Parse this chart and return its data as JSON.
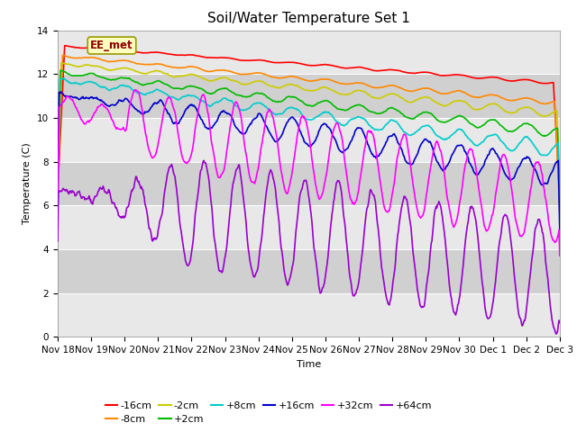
{
  "title": "Soil/Water Temperature Set 1",
  "xlabel": "Time",
  "ylabel": "Temperature (C)",
  "annotation": "EE_met",
  "ylim": [
    0,
    14
  ],
  "xlim": [
    0,
    15
  ],
  "xtick_labels": [
    "Nov 18",
    "Nov 19",
    "Nov 20",
    "Nov 21",
    "Nov 22",
    "Nov 23",
    "Nov 24",
    "Nov 25",
    "Nov 26",
    "Nov 27",
    "Nov 28",
    "Nov 29",
    "Nov 30",
    "Dec 1",
    "Dec 2",
    "Dec 3"
  ],
  "xtick_positions": [
    0,
    1,
    2,
    3,
    4,
    5,
    6,
    7,
    8,
    9,
    10,
    11,
    12,
    13,
    14,
    15
  ],
  "ytick_labels": [
    "0",
    "2",
    "4",
    "6",
    "8",
    "10",
    "12",
    "14"
  ],
  "ytick_positions": [
    0,
    2,
    4,
    6,
    8,
    10,
    12,
    14
  ],
  "series": {
    "-16cm": {
      "color": "#ff0000",
      "lw": 1.2
    },
    "-8cm": {
      "color": "#ff8800",
      "lw": 1.2
    },
    "-2cm": {
      "color": "#cccc00",
      "lw": 1.2
    },
    "+2cm": {
      "color": "#00bb00",
      "lw": 1.2
    },
    "+8cm": {
      "color": "#00cccc",
      "lw": 1.2
    },
    "+16cm": {
      "color": "#0000cc",
      "lw": 1.2
    },
    "+32cm": {
      "color": "#ff00ff",
      "lw": 1.2
    },
    "+64cm": {
      "color": "#9900cc",
      "lw": 1.2
    }
  },
  "background_color": "#ffffff",
  "plot_bg_color": "#d8d8d8",
  "title_fontsize": 11,
  "axis_fontsize": 8,
  "tick_fontsize": 7.5
}
